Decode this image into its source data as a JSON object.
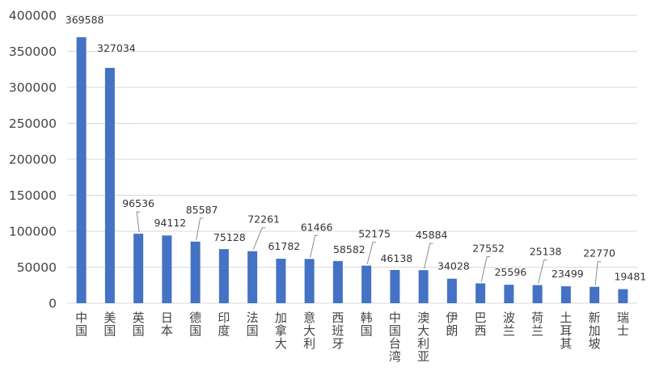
{
  "chart_data": {
    "type": "bar",
    "title": "",
    "xlabel": "",
    "ylabel": "",
    "ylim": [
      0,
      400000
    ],
    "yticks": [
      0,
      50000,
      100000,
      150000,
      200000,
      250000,
      300000,
      350000,
      400000
    ],
    "grid": true,
    "legend": "none",
    "bar_color": "#4472c4",
    "categories": [
      "中国",
      "美国",
      "英国",
      "日本",
      "德国",
      "印度",
      "法国",
      "加拿大",
      "意大利",
      "西班牙",
      "韩国",
      "中国台湾",
      "澳大利亚",
      "伊朗",
      "巴西",
      "波兰",
      "荷兰",
      "土耳其",
      "新加坡",
      "瑞士"
    ],
    "values": [
      369588,
      327034,
      96536,
      94112,
      85587,
      75128,
      72261,
      61782,
      61466,
      58582,
      52175,
      46138,
      45884,
      34028,
      27552,
      25596,
      25138,
      23499,
      22770,
      19481
    ],
    "data_labels": [
      "369588",
      "327034",
      "96536",
      "94112",
      "85587",
      "75128",
      "72261",
      "61782",
      "61466",
      "58582",
      "52175",
      "46138",
      "45884",
      "34028",
      "27552",
      "25596",
      "25138",
      "23499",
      "22770",
      "19481"
    ]
  }
}
